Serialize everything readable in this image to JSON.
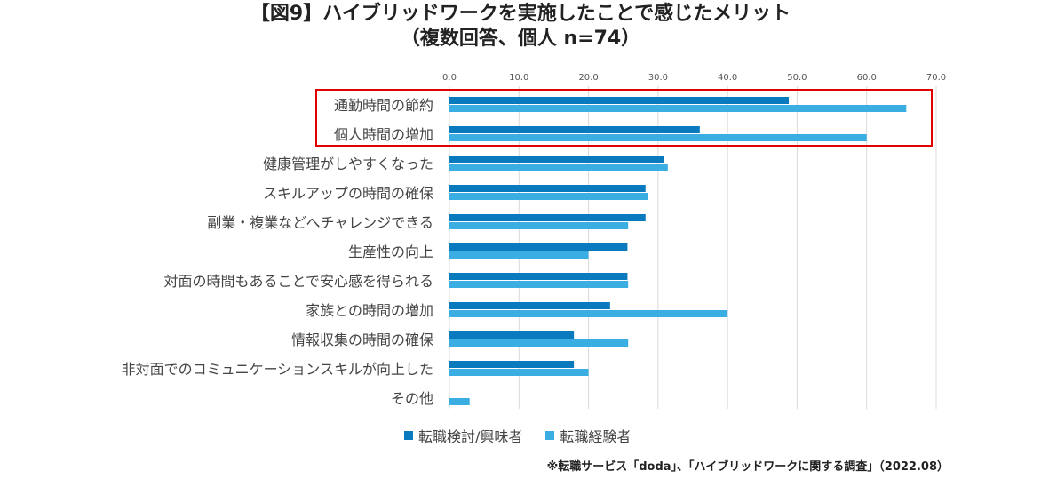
{
  "chart_data": {
    "type": "bar",
    "orientation": "horizontal",
    "title_line1": "【図9】ハイブリッドワークを実施したことで感じたメリット",
    "title_line2": "（複数回答、個人 n=74）",
    "categories": [
      "通勤時間の節約",
      "個人時間の増加",
      "健康管理がしやすくなった",
      "スキルアップの時間の確保",
      "副業・複業などへチャレンジできる",
      "生産性の向上",
      "対面の時間もあることで安心感を得られる",
      "家族との時間の増加",
      "情報収集の時間の確保",
      "非対面でのコミュニケーションスキルが向上した",
      "その他"
    ],
    "series": [
      {
        "name": "転職検討/興味者",
        "color": "#0a7abf",
        "values": [
          48.8,
          36.0,
          30.9,
          28.2,
          28.2,
          25.6,
          25.6,
          23.1,
          17.9,
          17.9,
          0
        ]
      },
      {
        "name": "転職経験者",
        "color": "#3aaee3",
        "values": [
          65.7,
          60.0,
          31.4,
          28.6,
          25.7,
          20.0,
          25.7,
          40.0,
          25.7,
          20.0,
          2.9
        ]
      }
    ],
    "xlim": [
      0,
      70
    ],
    "xticks": [
      "0.0",
      "10.0",
      "20.0",
      "30.0",
      "40.0",
      "50.0",
      "60.0",
      "70.0"
    ],
    "xaxis_position": "top",
    "grid": true,
    "legend_position": "bottom",
    "highlight_color": "#e00000"
  },
  "source_note": "※転職サービス「doda」、「ハイブリッドワークに関する調査」（2022.08）"
}
